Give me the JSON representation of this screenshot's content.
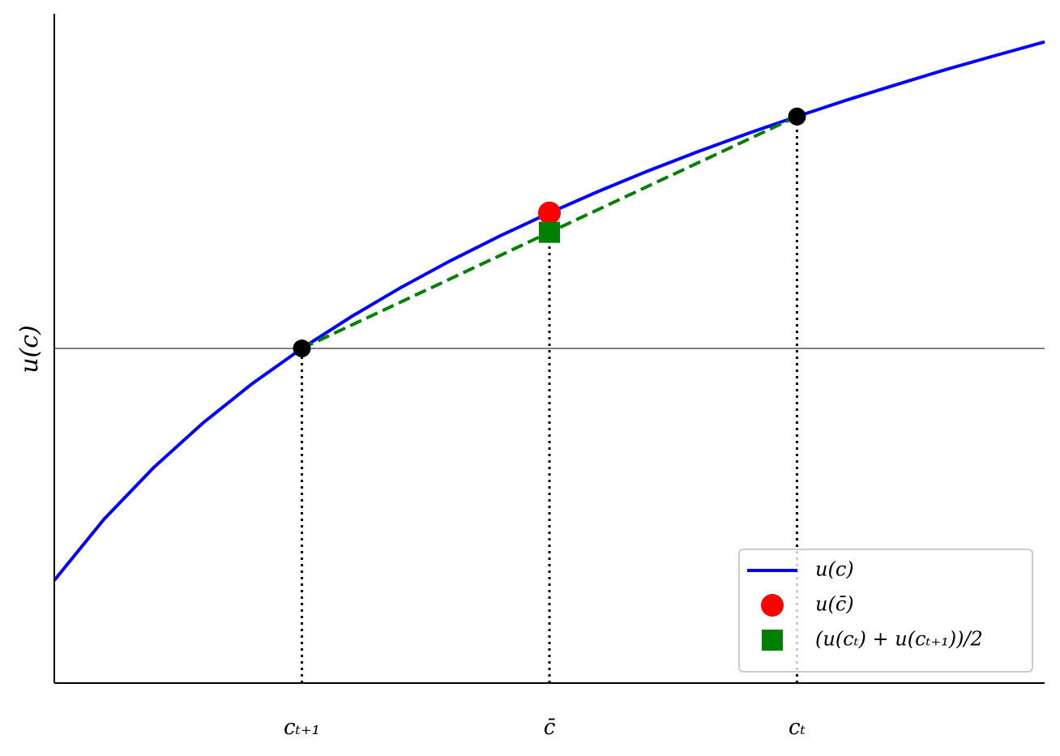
{
  "chart_data": {
    "type": "line",
    "ylabel": "u(c)",
    "xlim": [
      0.5,
      2.5
    ],
    "ylim": [
      -1,
      1
    ],
    "xticks": [
      {
        "value": 1,
        "label": "cₜ₊₁"
      },
      {
        "value": 1.5,
        "label": "c̄"
      },
      {
        "value": 2,
        "label": "cₜ"
      }
    ],
    "hline": 0,
    "legend": "lower right",
    "series": [
      {
        "name": "u(c)",
        "color": "blue",
        "style": "solid",
        "x": [
          0.5,
          0.6,
          0.7,
          0.8,
          0.9,
          1.0,
          1.1,
          1.2,
          1.3,
          1.4,
          1.5,
          1.6,
          1.7,
          1.8,
          1.9,
          2.0,
          2.1,
          2.2,
          2.3,
          2.4,
          2.5
        ],
        "values": [
          -0.693,
          -0.511,
          -0.357,
          -0.223,
          -0.105,
          0,
          0.095,
          0.182,
          0.262,
          0.336,
          0.405,
          0.47,
          0.531,
          0.588,
          0.642,
          0.693,
          0.742,
          0.788,
          0.833,
          0.875,
          0.916
        ]
      },
      {
        "color": "green",
        "style": "dashed",
        "x": [
          1,
          1.5,
          2
        ],
        "values": [
          0,
          0.347,
          0.693
        ]
      },
      {
        "color": "black",
        "marker": "o",
        "x": [
          1,
          2
        ],
        "values": [
          0,
          0.693
        ]
      },
      {
        "name": "u(c̄)",
        "color": "red",
        "marker": "o",
        "x": [
          1.5
        ],
        "values": [
          0.405
        ]
      },
      {
        "name": "(u(cₜ) + u(cₜ₊₁))/2",
        "color": "green",
        "marker": "s",
        "x": [
          1.5
        ],
        "values": [
          0.347
        ]
      }
    ]
  }
}
